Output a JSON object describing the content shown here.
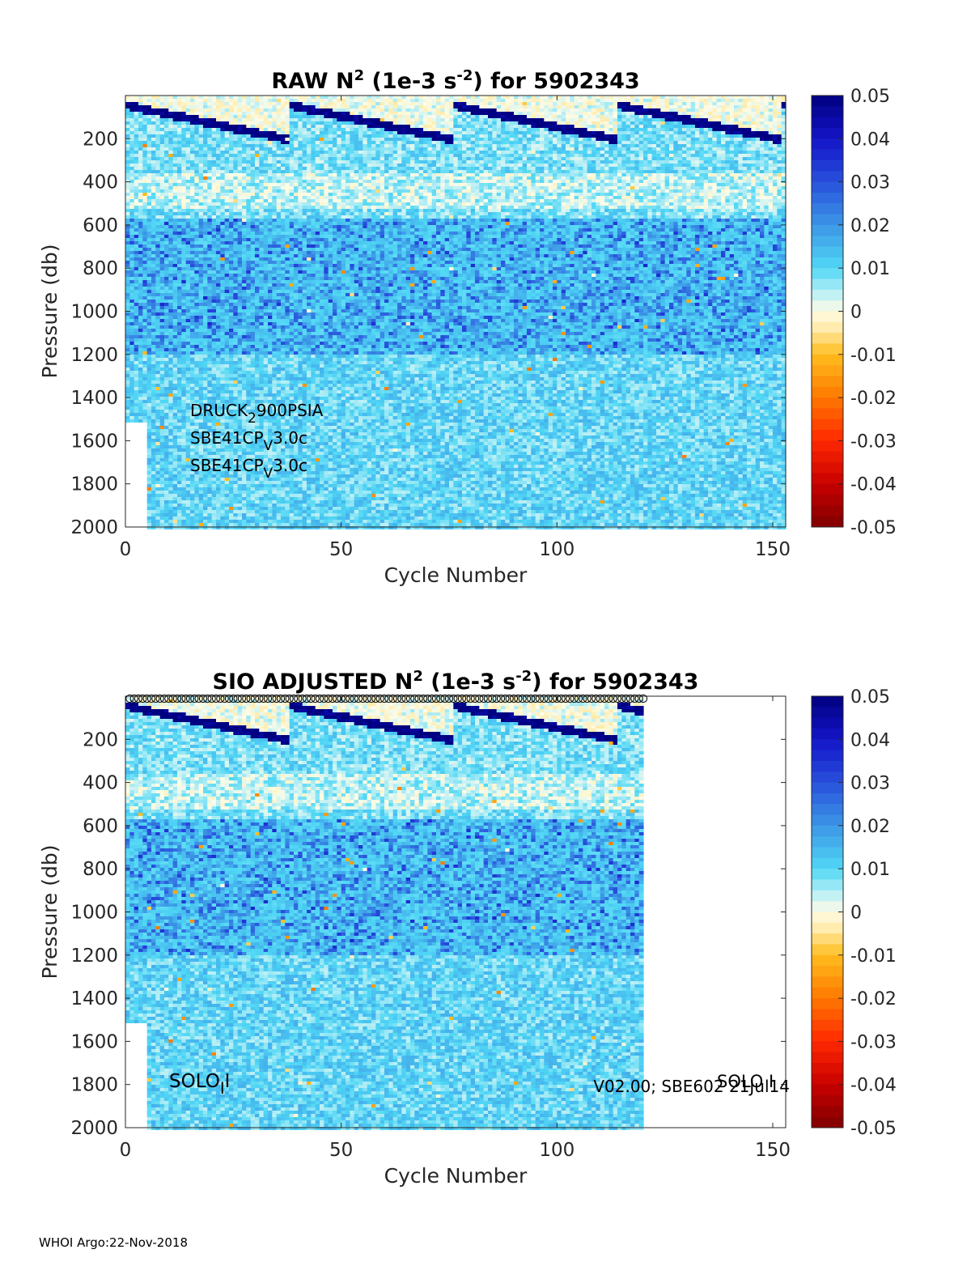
{
  "chart_data": [
    {
      "type": "heatmap",
      "id": "raw",
      "title_pre": "RAW N",
      "title_sup": "2",
      "title_mid": " (1e-3 s",
      "title_sup2": "-2",
      "title_post": ") for 5902343",
      "xlabel": "Cycle Number",
      "ylabel": "Pressure (db)",
      "xlim": [
        0,
        153
      ],
      "ylim": [
        0,
        2000
      ],
      "y_reversed": true,
      "x_ticks": [
        0,
        50,
        100,
        150
      ],
      "y_ticks": [
        200,
        400,
        600,
        800,
        1000,
        1200,
        1400,
        1600,
        1800,
        2000
      ],
      "data_cycles": [
        0,
        153
      ],
      "colorbar": {
        "range": [
          -0.05,
          0.05
        ],
        "ticks": [
          "0.05",
          "0.04",
          "0.03",
          "0.02",
          "0.01",
          "0",
          "-0.01",
          "-0.02",
          "-0.03",
          "-0.04",
          "-0.05"
        ]
      },
      "annotations": [
        {
          "main": "DRUCK",
          "sub": "2",
          "rest": "900PSIA"
        },
        {
          "main": "SBE41CP",
          "sub": "V",
          "rest": "3.0c"
        },
        {
          "main": "SBE41CP",
          "sub": "V",
          "rest": "3.0c"
        }
      ]
    },
    {
      "type": "heatmap",
      "id": "adj",
      "title_pre": "SIO  ADJUSTED N",
      "title_sup": "2",
      "title_mid": " (1e-3 s",
      "title_sup2": "-2",
      "title_post": ") for 5902343",
      "xlabel": "Cycle Number",
      "ylabel": "Pressure (db)",
      "xlim": [
        0,
        153
      ],
      "ylim": [
        0,
        2000
      ],
      "y_reversed": true,
      "x_ticks": [
        0,
        50,
        100,
        150
      ],
      "y_ticks": [
        200,
        400,
        600,
        800,
        1000,
        1200,
        1400,
        1600,
        1800,
        2000
      ],
      "data_cycles": [
        0,
        120
      ],
      "cycle_markers": "o",
      "colorbar": {
        "range": [
          -0.05,
          0.05
        ],
        "ticks": [
          "0.05",
          "0.04",
          "0.03",
          "0.02",
          "0.01",
          "0",
          "-0.01",
          "-0.02",
          "-0.03",
          "-0.04",
          "-0.05"
        ]
      },
      "annotation_left": {
        "main": "SOLO",
        "sub": "I",
        "rest": "I"
      },
      "annotation_right": "V02.00; SBE602 21Jul14",
      "annotation_right_overlay": "SOLO I"
    }
  ],
  "footer": "WHOI Argo:22-Nov-2018"
}
